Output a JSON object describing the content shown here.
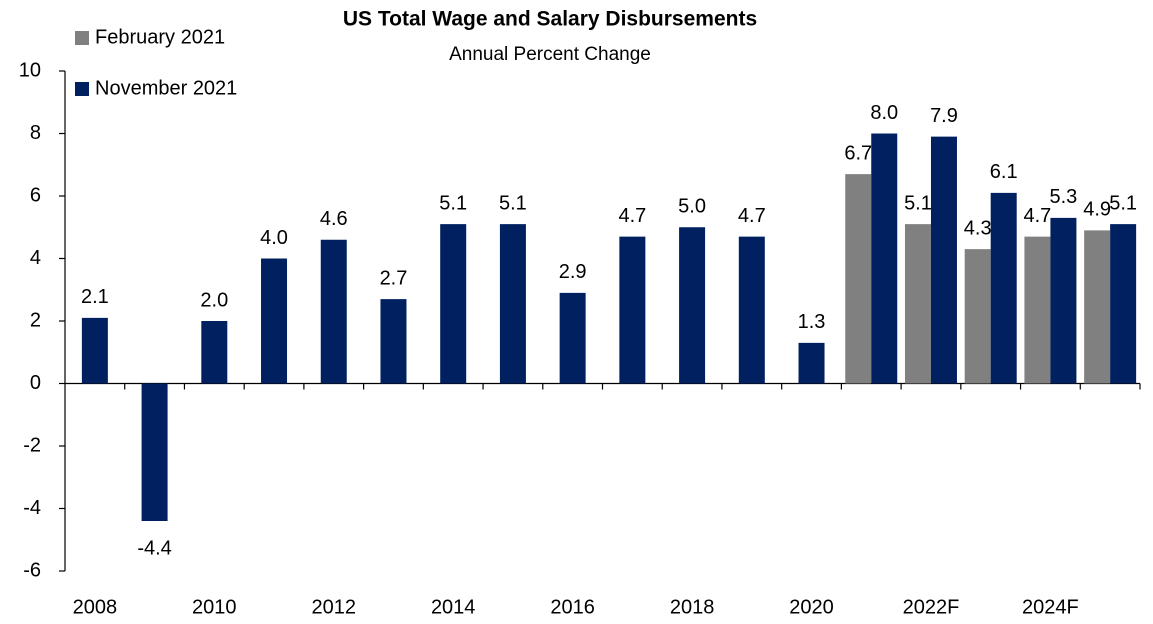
{
  "chart_data": {
    "type": "bar",
    "title": "US Total Wage and Salary Disbursements",
    "subtitle": "Annual Percent Change",
    "categories": [
      "2008",
      null,
      "2010",
      null,
      "2012",
      null,
      "2014",
      null,
      "2016",
      null,
      "2018",
      null,
      "2020",
      null,
      "2022F",
      null,
      "2024F",
      null
    ],
    "series": [
      {
        "name": "February 2021",
        "color": "#808080",
        "values": [
          null,
          null,
          null,
          null,
          null,
          null,
          null,
          null,
          null,
          null,
          null,
          null,
          null,
          6.7,
          5.1,
          4.3,
          4.7,
          4.9
        ],
        "value_labels": [
          null,
          null,
          null,
          null,
          null,
          null,
          null,
          null,
          null,
          null,
          null,
          null,
          null,
          "6.7",
          "5.1",
          "4.3",
          "4.7",
          "4.9"
        ]
      },
      {
        "name": "November 2021",
        "color": "#002060",
        "values": [
          2.1,
          -4.4,
          2.0,
          4.0,
          4.6,
          2.7,
          5.1,
          5.1,
          2.9,
          4.7,
          5.0,
          4.7,
          1.3,
          8.0,
          7.9,
          6.1,
          5.3,
          5.1
        ],
        "value_labels": [
          "2.1",
          "-4.4",
          "2.0",
          "4.0",
          "4.6",
          "2.7",
          "5.1",
          "5.1",
          "2.9",
          "4.7",
          "5.0",
          "4.7",
          "1.3",
          "8.0",
          "7.9",
          "6.1",
          "5.3",
          "5.1"
        ]
      }
    ],
    "ylim": [
      -6,
      10
    ],
    "yticks": [
      -6,
      -4,
      -2,
      0,
      2,
      4,
      6,
      8,
      10
    ],
    "grid": false,
    "legend": "top-left"
  }
}
